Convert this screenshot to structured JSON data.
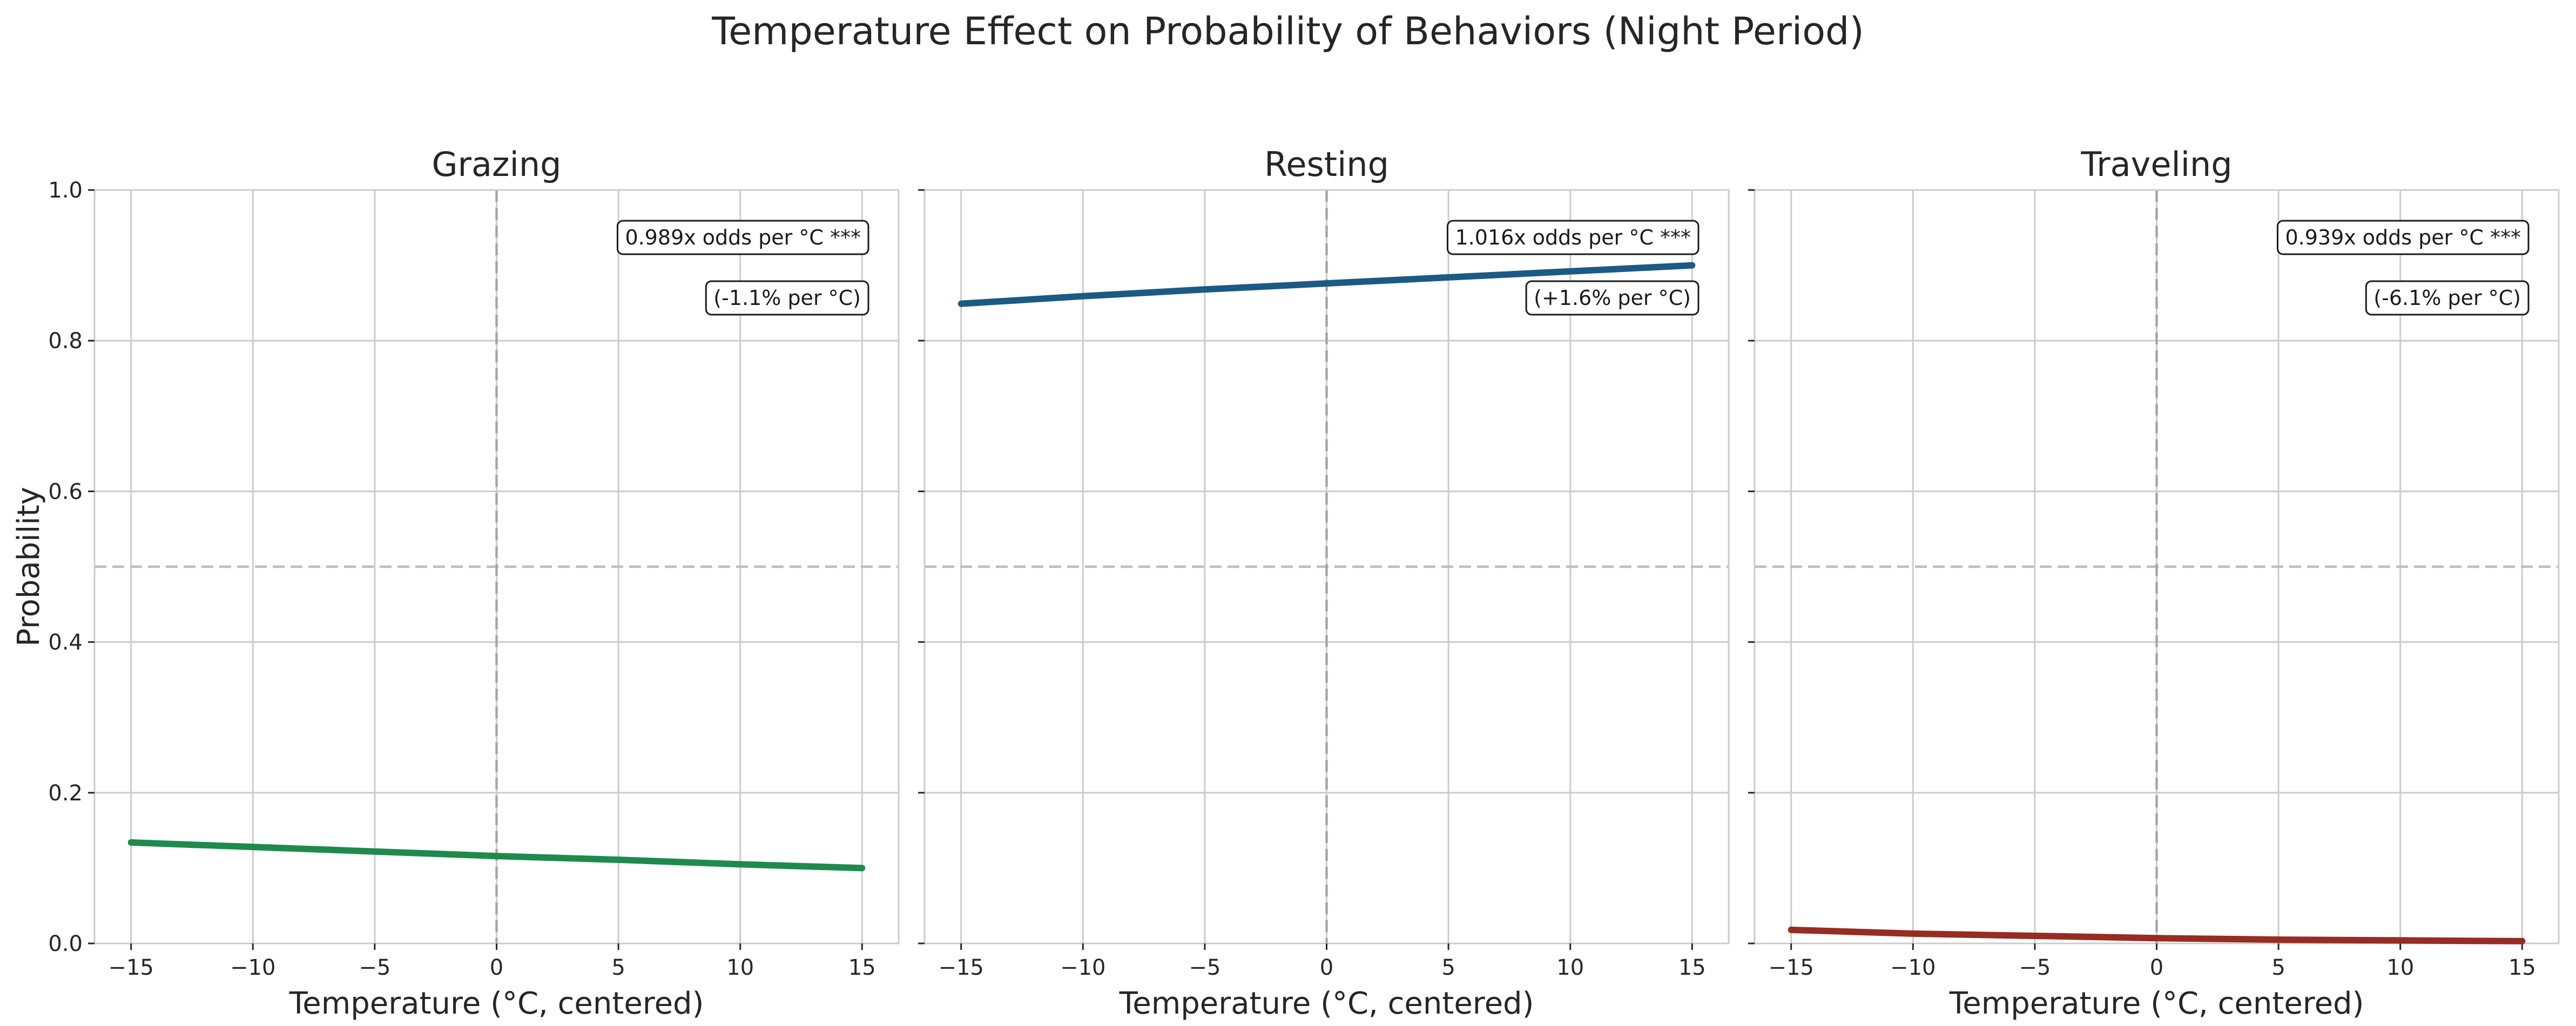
{
  "figure": {
    "title": "Temperature Effect on Probability of Behaviors (Night Period)"
  },
  "chart_data": [
    {
      "type": "line",
      "title": "Grazing",
      "xlabel": "Temperature (°C, centered)",
      "ylabel": "Probability",
      "xlim": [
        -16.5,
        16.5
      ],
      "ylim": [
        0,
        1
      ],
      "xticks": [
        -15,
        -10,
        -5,
        0,
        5,
        10,
        15
      ],
      "xtick_labels": [
        "−15",
        "−10",
        "−5",
        "0",
        "5",
        "10",
        "15"
      ],
      "yticks": [
        0,
        0.2,
        0.4,
        0.6,
        0.8,
        1.0
      ],
      "ytick_labels": [
        "0.0",
        "0.2",
        "0.4",
        "0.6",
        "0.8",
        "1.0"
      ],
      "grid": true,
      "reference_lines": {
        "x": 0,
        "y": 0.5
      },
      "color": "#1e8a4c",
      "odds_ratio_per_degree": 0.989,
      "x": [
        -15,
        -10,
        -5,
        0,
        5,
        10,
        15
      ],
      "y": [
        0.134,
        0.128,
        0.122,
        0.116,
        0.111,
        0.105,
        0.1
      ],
      "annotations": [
        "0.989x odds per °C ***",
        "(-1.1% per °C)"
      ]
    },
    {
      "type": "line",
      "title": "Resting",
      "xlabel": "Temperature (°C, centered)",
      "ylabel": "",
      "xlim": [
        -16.5,
        16.5
      ],
      "ylim": [
        0,
        1
      ],
      "xticks": [
        -15,
        -10,
        -5,
        0,
        5,
        10,
        15
      ],
      "xtick_labels": [
        "−15",
        "−10",
        "−5",
        "0",
        "5",
        "10",
        "15"
      ],
      "yticks": [
        0,
        0.2,
        0.4,
        0.6,
        0.8,
        1.0
      ],
      "ytick_labels": [],
      "grid": true,
      "reference_lines": {
        "x": 0,
        "y": 0.5
      },
      "color": "#1b5a85",
      "odds_ratio_per_degree": 1.016,
      "x": [
        -15,
        -10,
        -5,
        0,
        5,
        10,
        15
      ],
      "y": [
        0.849,
        0.859,
        0.868,
        0.876,
        0.884,
        0.892,
        0.9
      ],
      "annotations": [
        "1.016x odds per °C ***",
        "(+1.6% per °C)"
      ]
    },
    {
      "type": "line",
      "title": "Traveling",
      "xlabel": "Temperature (°C, centered)",
      "ylabel": "",
      "xlim": [
        -16.5,
        16.5
      ],
      "ylim": [
        0,
        1
      ],
      "xticks": [
        -15,
        -10,
        -5,
        0,
        5,
        10,
        15
      ],
      "xtick_labels": [
        "−15",
        "−10",
        "−5",
        "0",
        "5",
        "10",
        "15"
      ],
      "yticks": [
        0,
        0.2,
        0.4,
        0.6,
        0.8,
        1.0
      ],
      "ytick_labels": [],
      "grid": true,
      "reference_lines": {
        "x": 0,
        "y": 0.5
      },
      "color": "#962c22",
      "odds_ratio_per_degree": 0.939,
      "x": [
        -15,
        -10,
        -5,
        0,
        5,
        10,
        15
      ],
      "y": [
        0.018,
        0.013,
        0.01,
        0.007,
        0.005,
        0.004,
        0.003
      ],
      "annotations": [
        "0.939x odds per °C ***",
        "(-6.1% per °C)"
      ]
    }
  ]
}
